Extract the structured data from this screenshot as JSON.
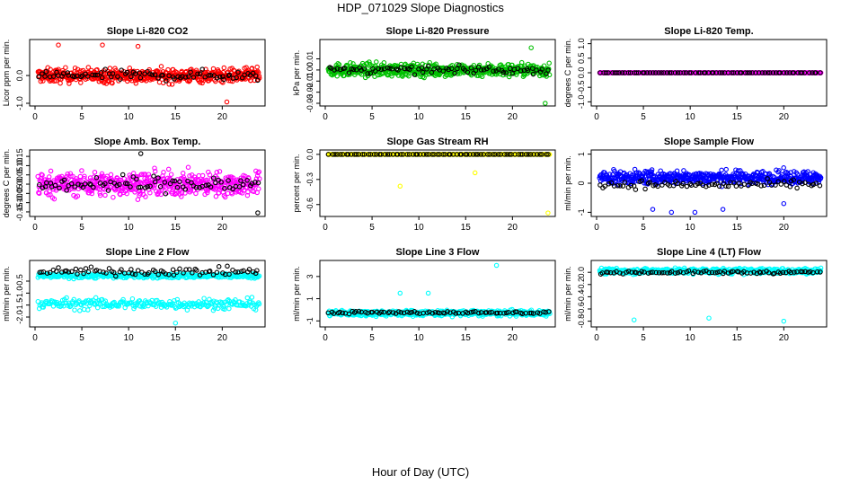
{
  "page": {
    "title": "HDP_071029  Slope Diagnostics",
    "xlabel": "Hour of Day (UTC)"
  },
  "chart_data": [
    {
      "type": "scatter",
      "title": "Slope Li-820 CO2",
      "ylabel": "Licor ppm per min.",
      "xlim": [
        0,
        24
      ],
      "ylim": [
        -1,
        1.2
      ],
      "xticks": [
        0,
        5,
        10,
        15,
        20
      ],
      "yticks": [
        -1.0,
        0.0
      ],
      "ytick_labels": [
        "-1.0",
        "0.0"
      ],
      "series": [
        {
          "color": "#ff0000",
          "n": 520,
          "center": 0.0,
          "spread": 0.55,
          "outliers": [
            [
              2.5,
              1.1
            ],
            [
              7.2,
              1.1
            ],
            [
              11.0,
              1.05
            ],
            [
              20.5,
              -0.95
            ]
          ]
        },
        {
          "color": "#000000",
          "n": 80,
          "center": 0.0,
          "spread": 0.4
        }
      ]
    },
    {
      "type": "scatter",
      "title": "Slope Li-820 Pressure",
      "ylabel": "kPa per min.",
      "xlim": [
        0,
        24
      ],
      "ylim": [
        -0.03,
        0.025
      ],
      "xticks": [
        0,
        5,
        10,
        15,
        20
      ],
      "yticks": [
        -0.03,
        -0.02,
        -0.01,
        0.0,
        0.01
      ],
      "ytick_labels": [
        "-0.03",
        "-0.02",
        "-0.01",
        "0.00",
        "0.01"
      ],
      "series": [
        {
          "color": "#00c000",
          "n": 520,
          "center": 0.0,
          "spread": 0.013,
          "outliers": [
            [
              22.0,
              0.02
            ],
            [
              23.5,
              -0.03
            ]
          ]
        },
        {
          "color": "#000000",
          "n": 80,
          "center": 0.0,
          "spread": 0.007
        }
      ]
    },
    {
      "type": "scatter",
      "title": "Slope Li-820 Temp.",
      "ylabel": "degrees C per min.",
      "xlim": [
        0,
        24
      ],
      "ylim": [
        -1.05,
        1.05
      ],
      "xticks": [
        0,
        5,
        10,
        15,
        20
      ],
      "yticks": [
        -1.0,
        -0.5,
        0.0,
        0.5,
        1.0
      ],
      "ytick_labels": [
        "-1.0",
        "-0.5",
        "0.0",
        "0.5",
        "1.0"
      ],
      "series": [
        {
          "color": "#ff00ff",
          "n": 520,
          "center": 0.0,
          "spread": 0.0
        },
        {
          "color": "#000000",
          "n": 80,
          "center": 0.0,
          "spread": 0.0
        }
      ]
    },
    {
      "type": "scatter",
      "title": "Slope Amb. Box Temp.",
      "ylabel": "degrees C per min.",
      "xlim": [
        0,
        24
      ],
      "ylim": [
        -0.16,
        0.17
      ],
      "xticks": [
        0,
        5,
        10,
        15,
        20
      ],
      "yticks": [
        -0.15,
        -0.1,
        -0.05,
        0.0,
        0.05,
        0.1,
        0.15
      ],
      "ytick_labels": [
        "-0.15",
        "-0.10",
        "-0.05",
        "0.00",
        "0.05",
        "0.10",
        "0.15"
      ],
      "series": [
        {
          "color": "#ff00ff",
          "n": 520,
          "center": 0.0,
          "spread": 0.14
        },
        {
          "color": "#000000",
          "n": 80,
          "center": 0.0,
          "spread": 0.1,
          "outliers": [
            [
              11.3,
              0.165
            ],
            [
              23.8,
              -0.155
            ]
          ]
        }
      ]
    },
    {
      "type": "scatter",
      "title": "Slope Gas Stream RH",
      "ylabel": "percent per min.",
      "xlim": [
        0,
        24
      ],
      "ylim": [
        -0.71,
        0.02
      ],
      "xticks": [
        0,
        5,
        10,
        15,
        20
      ],
      "yticks": [
        -0.6,
        -0.3,
        0.0
      ],
      "ytick_labels": [
        "-0.6",
        "-0.3",
        "0.0"
      ],
      "series": [
        {
          "color": "#ffff00",
          "n": 520,
          "center": 0.0,
          "spread": 0.0,
          "outliers": [
            [
              8.0,
              -0.38
            ],
            [
              16.0,
              -0.22
            ],
            [
              23.8,
              -0.7
            ]
          ]
        },
        {
          "color": "#000000",
          "n": 80,
          "center": 0.0,
          "spread": 0.0
        }
      ]
    },
    {
      "type": "scatter",
      "title": "Slope Sample Flow",
      "ylabel": "ml/min per min.",
      "xlim": [
        0,
        24
      ],
      "ylim": [
        -1.05,
        1.05
      ],
      "xticks": [
        0,
        5,
        10,
        15,
        20
      ],
      "yticks": [
        -1,
        0,
        1
      ],
      "ytick_labels": [
        "-1",
        "0",
        "1"
      ],
      "series": [
        {
          "color": "#0000ff",
          "n": 520,
          "center": 0.2,
          "spread": 0.5,
          "outliers": [
            [
              6.0,
              -0.9
            ],
            [
              8.0,
              -1.0
            ],
            [
              10.5,
              -1.0
            ],
            [
              13.5,
              -0.9
            ],
            [
              20.0,
              -0.7
            ]
          ]
        },
        {
          "color": "#000000",
          "n": 80,
          "center": -0.05,
          "spread": 0.3
        }
      ]
    },
    {
      "type": "scatter",
      "title": "Slope Line 2 Flow",
      "ylabel": "ml/min per min.",
      "xlim": [
        0,
        24
      ],
      "ylim": [
        -2.3,
        0.25
      ],
      "xticks": [
        0,
        5,
        10,
        15,
        20
      ],
      "yticks": [
        -2.0,
        -1.5,
        -1.0,
        -0.5
      ],
      "ytick_labels": [
        "-2.0",
        "-1.5",
        "-1.0",
        "-0.5"
      ],
      "series": [
        {
          "color": "#00ffff",
          "n": 330,
          "center": -0.28,
          "spread": 0.22
        },
        {
          "color": "#00ffff",
          "n": 250,
          "center": -1.45,
          "spread": 0.5,
          "outliers": [
            [
              15.0,
              -2.25
            ]
          ]
        },
        {
          "color": "#000000",
          "n": 80,
          "center": -0.1,
          "spread": 0.35
        }
      ]
    },
    {
      "type": "scatter",
      "title": "Slope Line 3 Flow",
      "ylabel": "ml/min per min.",
      "xlim": [
        0,
        24
      ],
      "ylim": [
        -1.3,
        4.2
      ],
      "xticks": [
        0,
        5,
        10,
        15,
        20
      ],
      "yticks": [
        -1,
        1,
        3
      ],
      "ytick_labels": [
        "-1",
        "1",
        "3"
      ],
      "series": [
        {
          "color": "#00ffff",
          "n": 520,
          "center": -0.3,
          "spread": 0.55,
          "outliers": [
            [
              8.0,
              1.5
            ],
            [
              11.0,
              1.5
            ],
            [
              18.3,
              4.0
            ]
          ]
        },
        {
          "color": "#000000",
          "n": 80,
          "center": -0.25,
          "spread": 0.25
        }
      ]
    },
    {
      "type": "scatter",
      "title": "Slope Line 4 (LT) Flow",
      "ylabel": "ml/min per min.",
      "xlim": [
        0,
        24
      ],
      "ylim": [
        -0.85,
        0.15
      ],
      "xticks": [
        0,
        5,
        10,
        15,
        20
      ],
      "yticks": [
        -0.8,
        -0.6,
        -0.4,
        -0.2,
        0.0
      ],
      "ytick_labels": [
        "-0.8",
        "-0.6",
        "-0.4",
        "-0.2",
        "0.0"
      ],
      "series": [
        {
          "color": "#00ffff",
          "n": 520,
          "center": 0.02,
          "spread": 0.1,
          "outliers": [
            [
              4.0,
              -0.78
            ],
            [
              12.0,
              -0.75
            ],
            [
              20.0,
              -0.8
            ]
          ]
        },
        {
          "color": "#000000",
          "n": 80,
          "center": 0.0,
          "spread": 0.05
        }
      ]
    }
  ]
}
